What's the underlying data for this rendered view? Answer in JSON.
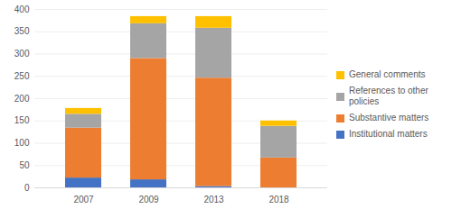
{
  "chart_data": {
    "type": "bar",
    "stacked": true,
    "grid": true,
    "legend": "right",
    "categories": [
      "2007",
      "2009",
      "2013",
      "2018"
    ],
    "series": [
      {
        "name": "Institutional matters",
        "color": "#4472c4",
        "values": [
          22,
          18,
          3,
          0
        ]
      },
      {
        "name": "Substantive matters",
        "color": "#ed7d31",
        "values": [
          112,
          272,
          243,
          67
        ]
      },
      {
        "name": "References to other policies",
        "color": "#a5a5a5",
        "values": [
          31,
          78,
          112,
          71
        ]
      },
      {
        "name": "General comments",
        "color": "#ffc000",
        "values": [
          13,
          16,
          26,
          12
        ]
      }
    ],
    "ylim": [
      0,
      400
    ],
    "yticks": [
      0,
      50,
      100,
      150,
      200,
      250,
      300,
      350,
      400
    ]
  }
}
